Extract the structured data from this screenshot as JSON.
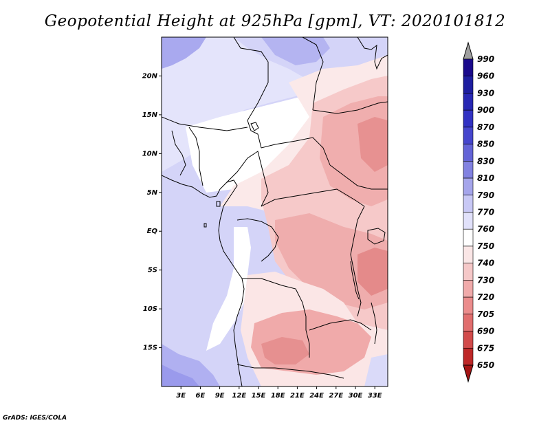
{
  "title": "Geopotential Height at 925hPa [gpm], VT: 2020101812",
  "footer": "GrADS: IGES/COLA",
  "map": {
    "projection": "latlon",
    "lon_range": [
      0,
      35
    ],
    "lat_range": [
      -20,
      25
    ],
    "lat_labels": [
      "20N",
      "15N",
      "10N",
      "5N",
      "EQ",
      "5S",
      "10S",
      "15S"
    ],
    "lat_values": [
      20,
      15,
      10,
      5,
      0,
      -5,
      -10,
      -15
    ],
    "lon_labels": [
      "3E",
      "6E",
      "9E",
      "12E",
      "15E",
      "18E",
      "21E",
      "24E",
      "27E",
      "30E",
      "33E"
    ],
    "lon_values": [
      3,
      6,
      9,
      12,
      15,
      18,
      21,
      24,
      27,
      30,
      33
    ]
  },
  "colorbar": {
    "labels": [
      "990",
      "960",
      "930",
      "900",
      "870",
      "850",
      "830",
      "810",
      "790",
      "770",
      "760",
      "750",
      "740",
      "730",
      "720",
      "705",
      "690",
      "675",
      "650"
    ],
    "colors": [
      "#a0a0a0",
      "#1a0a8c",
      "#1e1ea0",
      "#2828b4",
      "#3232c3",
      "#4646cd",
      "#6464d7",
      "#8282e1",
      "#a5a5eb",
      "#c8c8f5",
      "#e1e1fa",
      "#ffffff",
      "#fae6e6",
      "#f5c8c8",
      "#f0aaaa",
      "#eb8c8c",
      "#e16e6e",
      "#d24b4b",
      "#be2828",
      "#a51414"
    ]
  },
  "colors": {
    "ocean": "#d2d2f8",
    "land_default": "#fadcdc",
    "coast": "#000000"
  }
}
